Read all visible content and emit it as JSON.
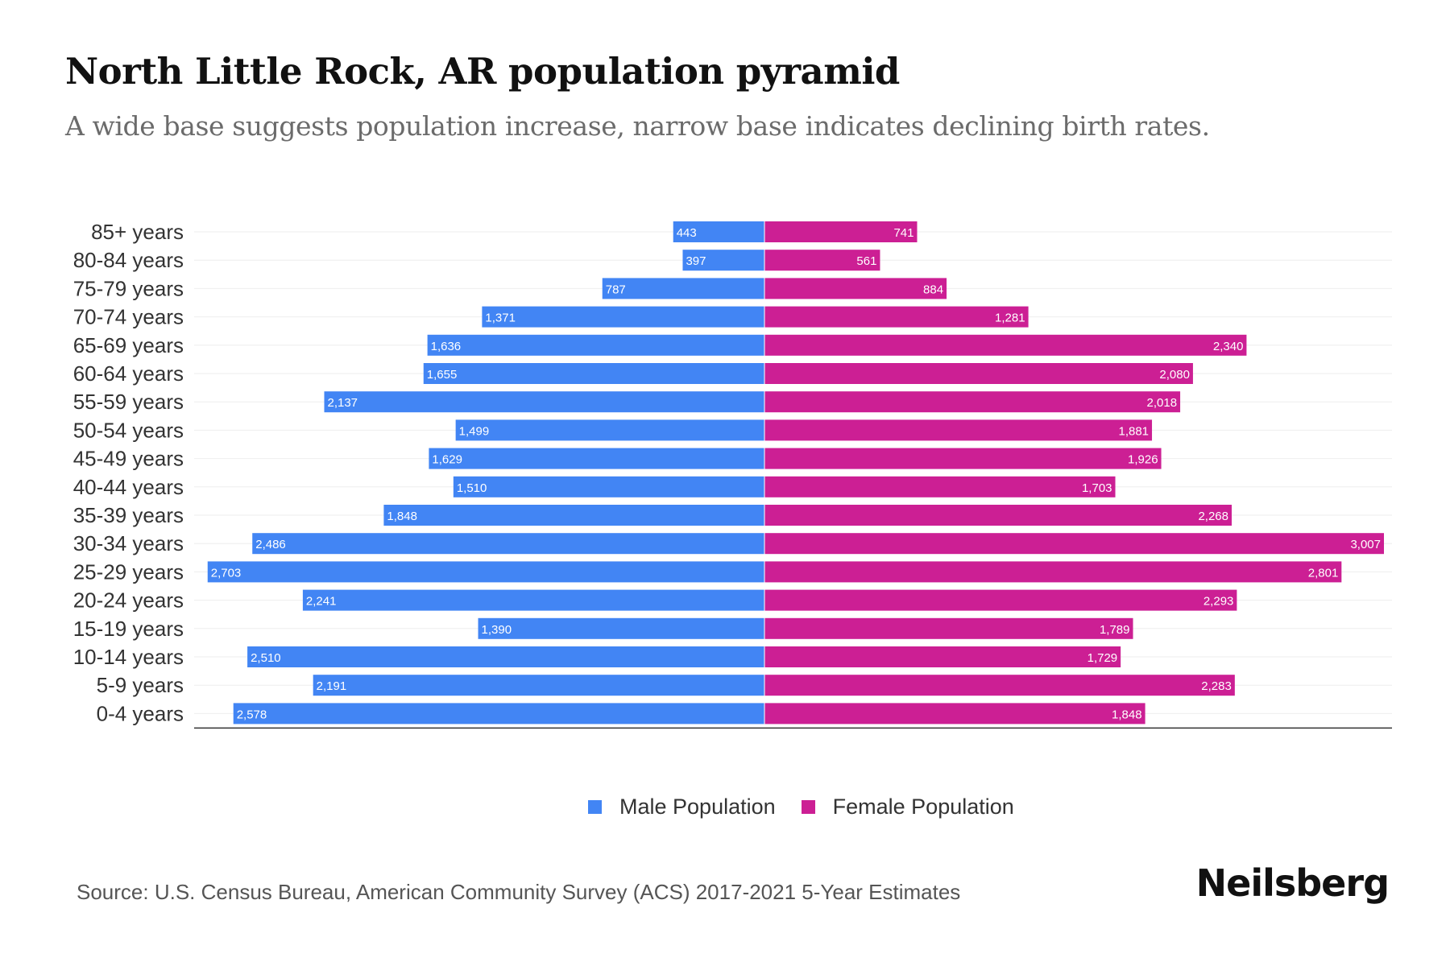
{
  "title": "North Little Rock, AR population pyramid",
  "subtitle": "A wide base suggests population increase, narrow base indicates declining birth rates.",
  "source": "Source: U.S. Census Bureau, American Community Survey (ACS) 2017-2021 5-Year Estimates",
  "brand": "Neilsberg",
  "colors": {
    "male": "#4285f4",
    "female": "#cc1f94"
  },
  "chart_data": {
    "type": "bar",
    "orientation": "horizontal-pyramid",
    "title": "North Little Rock, AR population pyramid",
    "categories": [
      "85+ years",
      "80-84 years",
      "75-79 years",
      "70-74 years",
      "65-69 years",
      "60-64 years",
      "55-59 years",
      "50-54 years",
      "45-49 years",
      "40-44 years",
      "35-39 years",
      "30-34 years",
      "25-29 years",
      "20-24 years",
      "15-19 years",
      "10-14 years",
      "5-9 years",
      "0-4 years"
    ],
    "series": [
      {
        "name": "Male Population",
        "values": [
          443,
          397,
          787,
          1371,
          1636,
          1655,
          2137,
          1499,
          1629,
          1510,
          1848,
          2486,
          2703,
          2241,
          1390,
          2510,
          2191,
          2578
        ]
      },
      {
        "name": "Female Population",
        "values": [
          741,
          561,
          884,
          1281,
          2340,
          2080,
          2018,
          1881,
          1926,
          1703,
          2268,
          3007,
          2801,
          2293,
          1789,
          1729,
          2283,
          1848
        ]
      }
    ],
    "labels": {
      "male": [
        "443",
        "397",
        "787",
        "1,371",
        "1,636",
        "1,655",
        "2,137",
        "1,499",
        "1,629",
        "1,510",
        "1,848",
        "2,486",
        "2,703",
        "2,241",
        "1,390",
        "2,510",
        "2,191",
        "2,578"
      ],
      "female": [
        "741",
        "561",
        "884",
        "1,281",
        "2,340",
        "2,080",
        "2,018",
        "1,881",
        "1,926",
        "1,703",
        "2,268",
        "3,007",
        "2,801",
        "2,293",
        "1,789",
        "1,729",
        "2,283",
        "1,848"
      ]
    },
    "xlim": [
      -3007,
      3007
    ],
    "grid": true,
    "legend": "bottom-center"
  }
}
